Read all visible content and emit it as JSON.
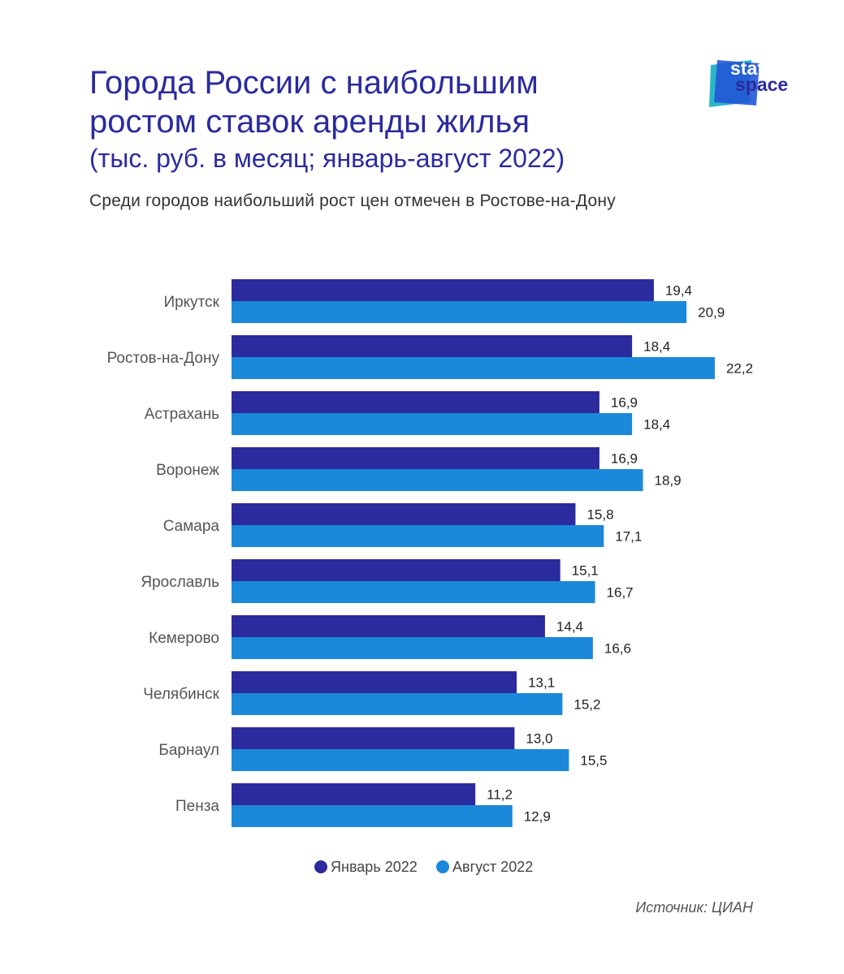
{
  "header": {
    "title_line1": "Города России с наибольшим",
    "title_line2": "ростом ставок аренды жилья",
    "title_line3": "(тыс. руб. в месяц; январь-август 2022)",
    "subtitle": "Среди городов наибольший рост цен отмечен в Ростове-на-Дону"
  },
  "logo": {
    "word1": "stat",
    "word2": "space"
  },
  "source": "Источник: ЦИАН",
  "colors": {
    "january": "#2b2b9e",
    "august": "#1b88d9",
    "title": "#2b2b9e",
    "logo_teal": "#2bb6c8",
    "logo_blue": "#2256d6"
  },
  "chart_data": {
    "type": "bar",
    "orientation": "horizontal",
    "categories": [
      "Иркутск",
      "Ростов-на-Дону",
      "Астрахань",
      "Воронеж",
      "Самара",
      "Ярославль",
      "Кемерово",
      "Челябинск",
      "Барнаул",
      "Пенза"
    ],
    "series": [
      {
        "name": "Январь 2022",
        "values": [
          19.4,
          18.4,
          16.9,
          16.9,
          15.8,
          15.1,
          14.4,
          13.1,
          13.0,
          11.2
        ],
        "labels": [
          "19,4",
          "18,4",
          "16,9",
          "16,9",
          "15,8",
          "15,1",
          "14,4",
          "13,1",
          "13,0",
          "11,2"
        ]
      },
      {
        "name": "Август 2022",
        "values": [
          20.9,
          22.2,
          18.4,
          18.9,
          17.1,
          16.7,
          16.6,
          15.2,
          15.5,
          12.9
        ],
        "labels": [
          "20,9",
          "22,2",
          "18,4",
          "18,9",
          "17,1",
          "16,7",
          "16,6",
          "15,2",
          "15,5",
          "12,9"
        ]
      }
    ],
    "xlim": [
      0,
      22.2
    ],
    "legend": "bottom",
    "grid": false
  }
}
